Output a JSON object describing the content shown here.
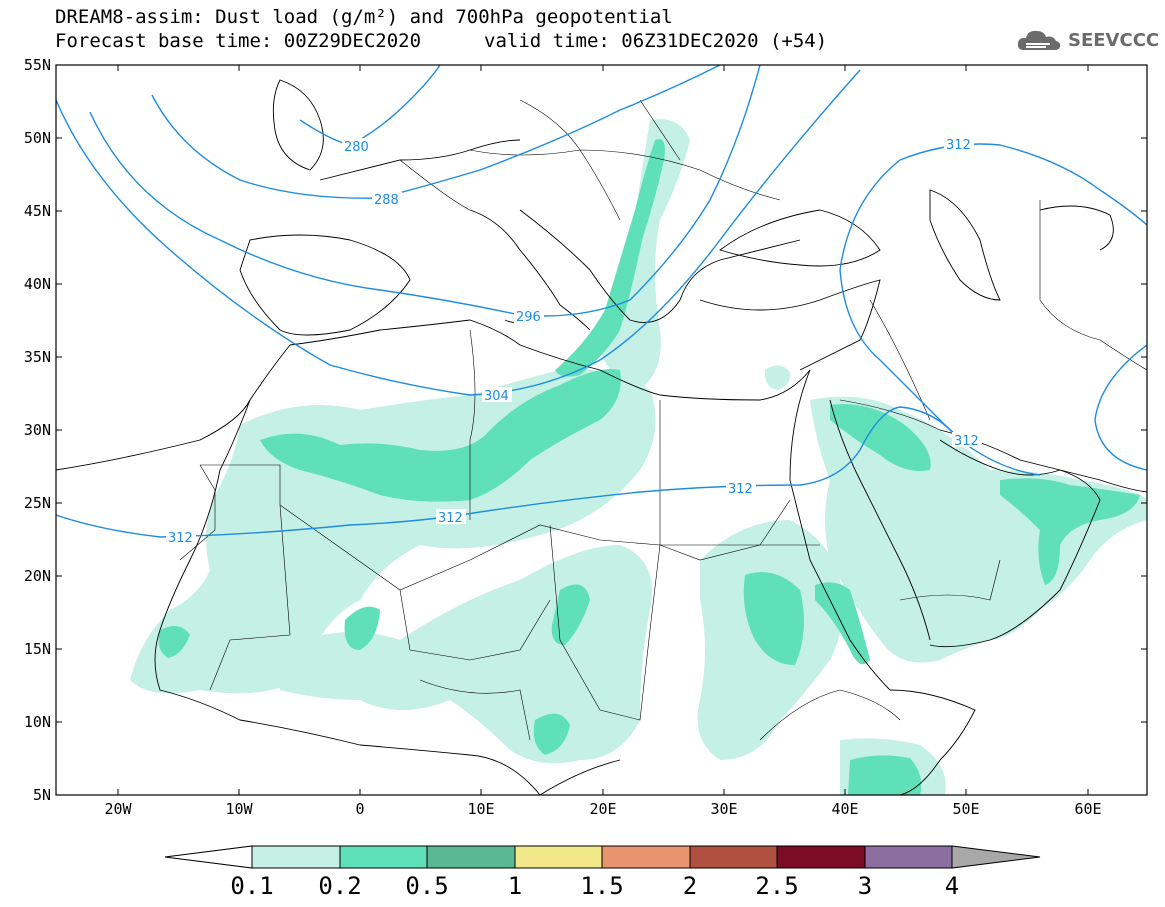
{
  "title": {
    "line1": "DREAM8-assim: Dust load (g/m²) and 700hPa geopotential",
    "base_time": "Forecast base time: 00Z29DEC2020",
    "valid_time": "valid time: 06Z31DEC2020 (+54)"
  },
  "logo": {
    "text": "SEEVCCC",
    "icon": "cloud-logo-icon"
  },
  "map": {
    "lat_labels": [
      "55N",
      "50N",
      "45N",
      "40N",
      "35N",
      "30N",
      "25N",
      "20N",
      "15N",
      "10N",
      "5N"
    ],
    "lon_labels": [
      "20W",
      "10W",
      "0",
      "10E",
      "20E",
      "30E",
      "40E",
      "50E",
      "60E"
    ],
    "contour_labels": [
      "280",
      "288",
      "296",
      "304",
      "312",
      "312",
      "312",
      "312",
      "312"
    ]
  },
  "colorbar": {
    "ticks": [
      "0.1",
      "0.2",
      "0.5",
      "1",
      "1.5",
      "2",
      "2.5",
      "3",
      "4"
    ],
    "colors": [
      "#ffffff",
      "#c4f0e6",
      "#5fe0b8",
      "#5ab894",
      "#f2e88a",
      "#e8946e",
      "#b05040",
      "#7a0c24",
      "#8c6ea0",
      "#a8a8a8"
    ]
  },
  "colors": {
    "contour": "#1e8ce0",
    "dust_low": "#c4f0e6",
    "dust_mid": "#5fe0b8",
    "dust_high": "#5ab894"
  }
}
